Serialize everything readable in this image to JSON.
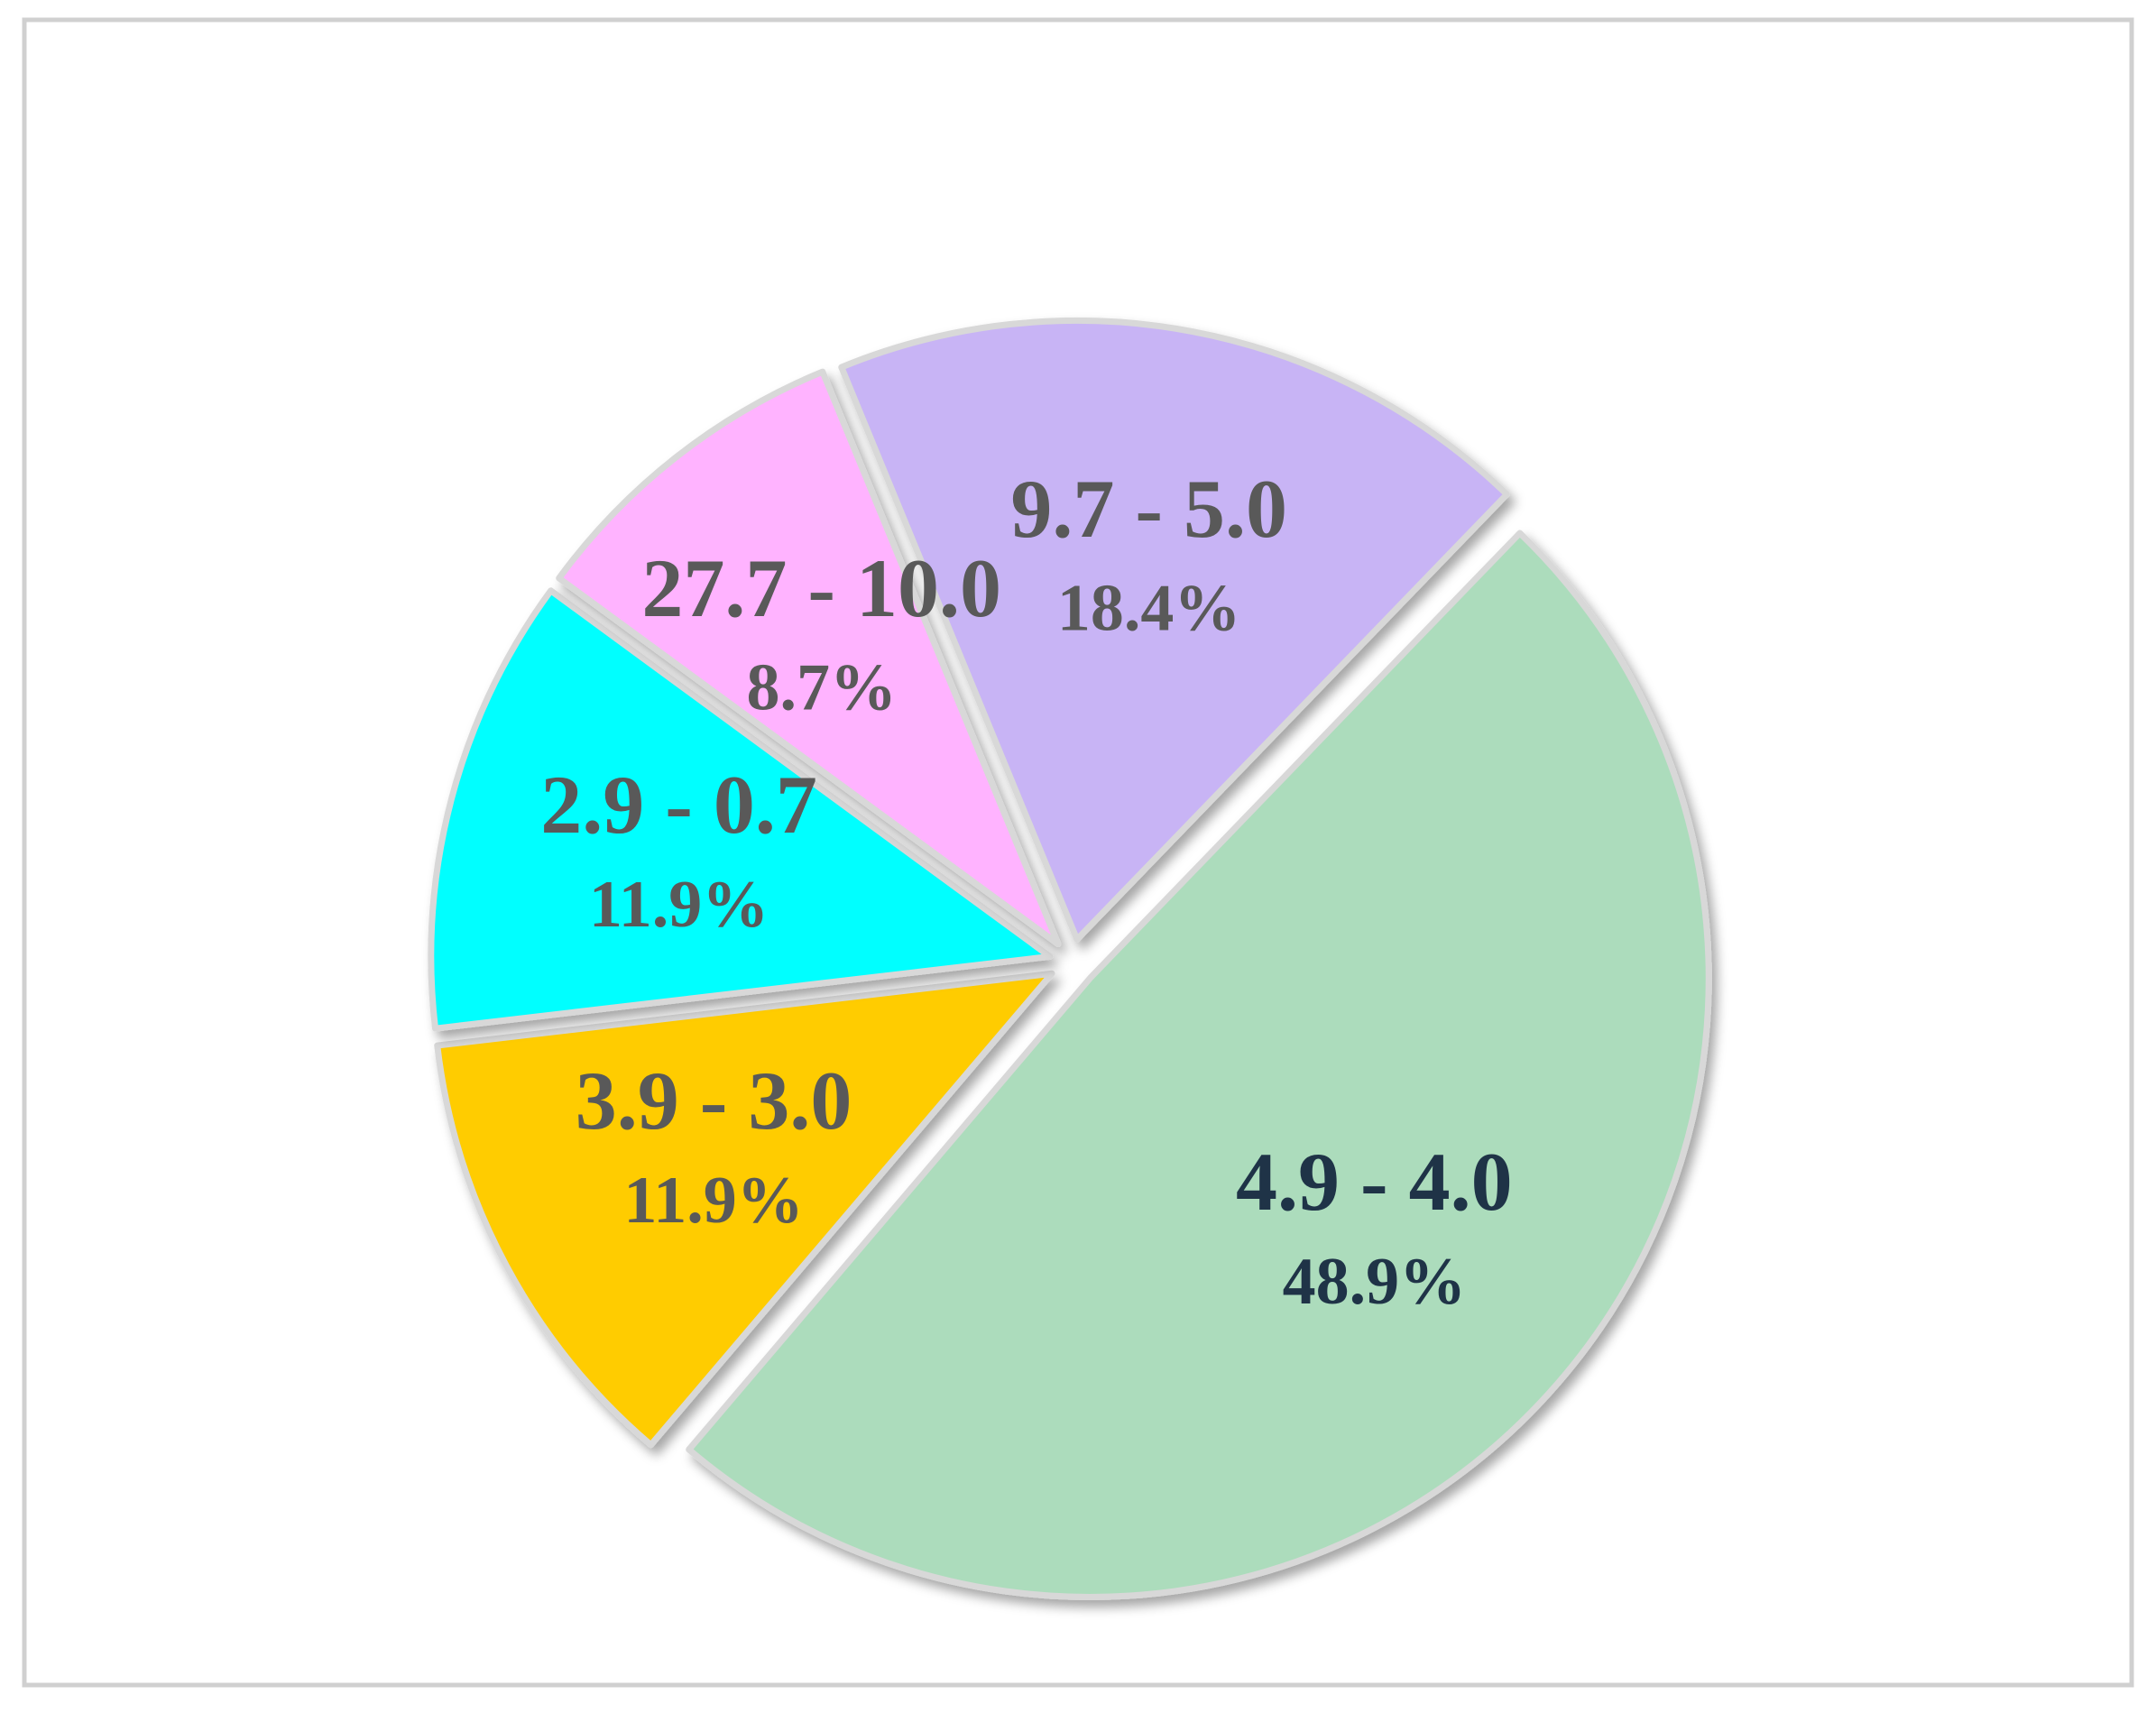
{
  "chart_data": {
    "type": "pie",
    "categories": [
      "4.9 - 4.0",
      "3.9 - 3.0",
      "2.9 - 0.7",
      "27.7 - 10.0",
      "9.7 - 5.0"
    ],
    "values": [
      48.9,
      11.9,
      11.9,
      8.7,
      18.4
    ],
    "value_labels": [
      "48.9%",
      "11.9%",
      "11.9%",
      "8.7%",
      "18.4%"
    ],
    "colors": [
      "#acdcbc",
      "#ffcc00",
      "#00ffff",
      "#ffb3ff",
      "#c8b4f5"
    ],
    "label_colors": [
      "#1f3347",
      "#595959",
      "#595959",
      "#595959",
      "#595959"
    ]
  }
}
